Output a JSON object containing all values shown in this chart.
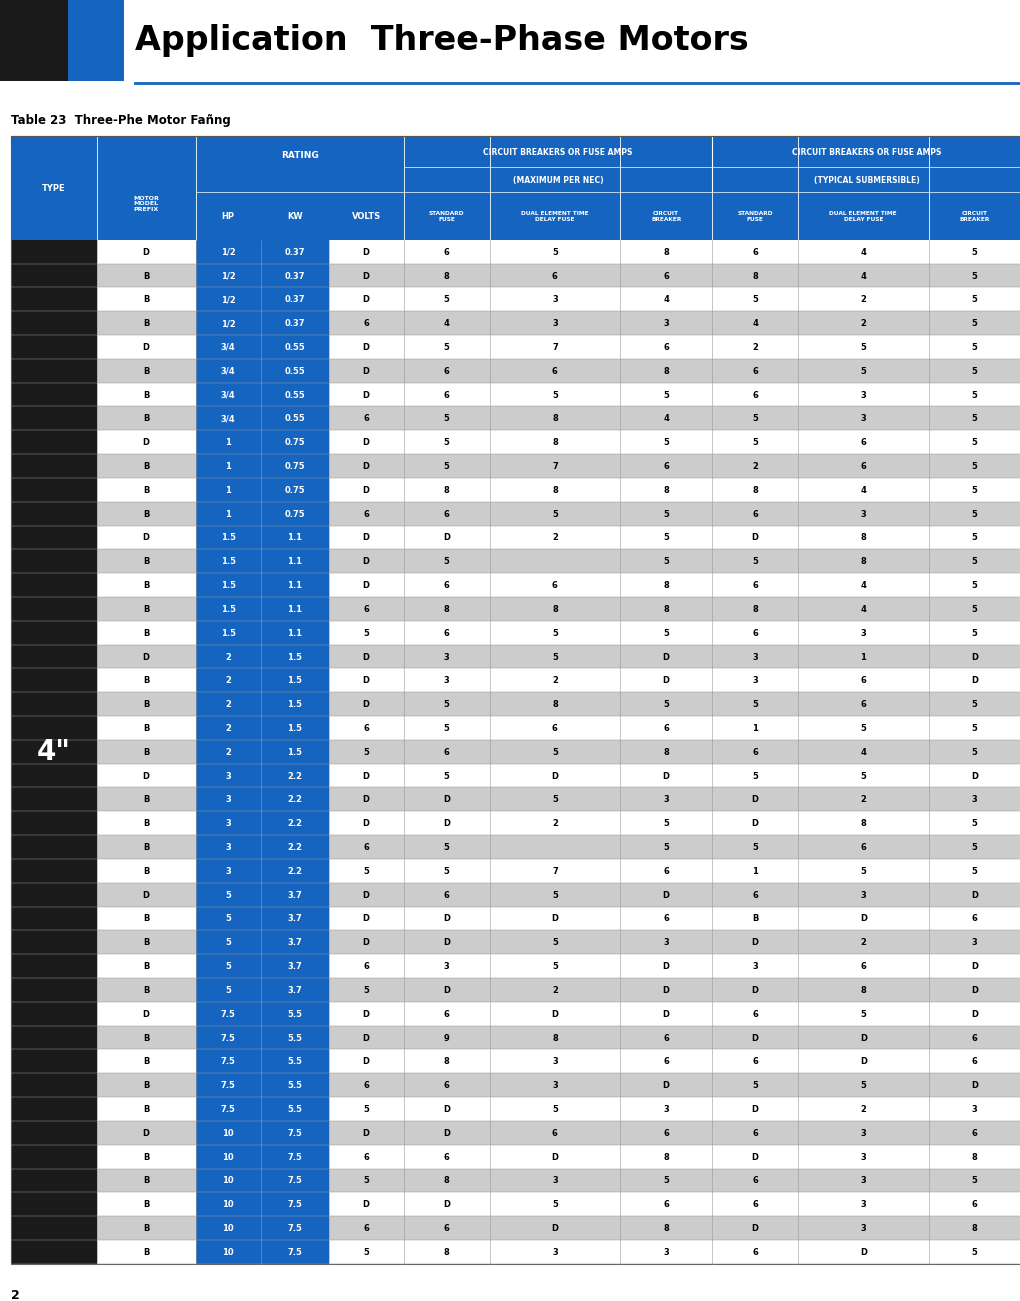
{
  "title": "Application  Three-Phase Motors",
  "subtitle": "Table 23 Three-Phe Motor Fañng",
  "page_num": "2",
  "blue": "#1565C0",
  "white": "#FFFFFF",
  "light_gray": "#CCCCCC",
  "dark": "#1A1A1A",
  "col_props": [
    0.082,
    0.095,
    0.062,
    0.065,
    0.072,
    0.082,
    0.125,
    0.088,
    0.082,
    0.125,
    0.088
  ],
  "rows": [
    [
      "D",
      "1/2",
      "0.37",
      "D",
      "6",
      "5",
      "8",
      "6",
      "4",
      "5",
      ""
    ],
    [
      "B",
      "1/2",
      "0.37",
      "D",
      "8",
      "6",
      "6",
      "8",
      "4",
      "5",
      ""
    ],
    [
      "B",
      "1/2",
      "0.37",
      "D",
      "5",
      "3",
      "4",
      "5",
      "2",
      "5",
      ""
    ],
    [
      "B",
      "1/2",
      "0.37",
      "6",
      "4",
      "3",
      "3",
      "4",
      "2",
      "5",
      ""
    ],
    [
      "D",
      "3/4",
      "0.55",
      "D",
      "5",
      "7",
      "6",
      "2",
      "5",
      "5",
      ""
    ],
    [
      "B",
      "3/4",
      "0.55",
      "D",
      "6",
      "6",
      "8",
      "6",
      "5",
      "5",
      ""
    ],
    [
      "B",
      "3/4",
      "0.55",
      "D",
      "6",
      "5",
      "5",
      "6",
      "3",
      "5",
      ""
    ],
    [
      "B",
      "3/4",
      "0.55",
      "6",
      "5",
      "8",
      "4",
      "5",
      "3",
      "5",
      ""
    ],
    [
      "D",
      "1",
      "0.75",
      "D",
      "5",
      "8",
      "5",
      "5",
      "6",
      "5",
      ""
    ],
    [
      "B",
      "1",
      "0.75",
      "D",
      "5",
      "7",
      "6",
      "2",
      "6",
      "5",
      ""
    ],
    [
      "B",
      "1",
      "0.75",
      "D",
      "8",
      "8",
      "8",
      "8",
      "4",
      "5",
      ""
    ],
    [
      "B",
      "1",
      "0.75",
      "6",
      "6",
      "5",
      "5",
      "6",
      "3",
      "5",
      ""
    ],
    [
      "D",
      "1.5",
      "1.1",
      "D",
      "D",
      "2",
      "5",
      "D",
      "8",
      "5",
      ""
    ],
    [
      "B",
      "1.5",
      "1.1",
      "D",
      "5",
      "",
      "5",
      "5",
      "8",
      "5",
      ""
    ],
    [
      "B",
      "1.5",
      "1.1",
      "D",
      "6",
      "6",
      "8",
      "6",
      "4",
      "5",
      ""
    ],
    [
      "B",
      "1.5",
      "1.1",
      "6",
      "8",
      "8",
      "8",
      "8",
      "4",
      "5",
      ""
    ],
    [
      "B",
      "1.5",
      "1.1",
      "5",
      "6",
      "5",
      "5",
      "6",
      "3",
      "5",
      ""
    ],
    [
      "D",
      "2",
      "1.5",
      "D",
      "3",
      "5",
      "D",
      "3",
      "1",
      "D",
      ""
    ],
    [
      "B",
      "2",
      "1.5",
      "D",
      "3",
      "2",
      "D",
      "3",
      "6",
      "D",
      ""
    ],
    [
      "B",
      "2",
      "1.5",
      "D",
      "5",
      "8",
      "5",
      "5",
      "6",
      "5",
      ""
    ],
    [
      "B",
      "2",
      "1.5",
      "6",
      "5",
      "6",
      "6",
      "1",
      "5",
      "5",
      ""
    ],
    [
      "B",
      "2",
      "1.5",
      "5",
      "6",
      "5",
      "8",
      "6",
      "4",
      "5",
      ""
    ],
    [
      "D",
      "3",
      "2.2",
      "D",
      "5",
      "D",
      "D",
      "5",
      "5",
      "D",
      ""
    ],
    [
      "B",
      "3",
      "2.2",
      "D",
      "D",
      "5",
      "3",
      "D",
      "2",
      "3",
      ""
    ],
    [
      "B",
      "3",
      "2.2",
      "D",
      "D",
      "2",
      "5",
      "D",
      "8",
      "5",
      ""
    ],
    [
      "B",
      "3",
      "2.2",
      "6",
      "5",
      "",
      "5",
      "5",
      "6",
      "5",
      ""
    ],
    [
      "B",
      "3",
      "2.2",
      "5",
      "5",
      "7",
      "6",
      "1",
      "5",
      "5",
      ""
    ],
    [
      "D",
      "5",
      "3.7",
      "D",
      "6",
      "5",
      "D",
      "6",
      "3",
      "D",
      ""
    ],
    [
      "B",
      "5",
      "3.7",
      "D",
      "D",
      "D",
      "6",
      "B",
      "D",
      "6",
      ""
    ],
    [
      "B",
      "5",
      "3.7",
      "D",
      "D",
      "5",
      "3",
      "D",
      "2",
      "3",
      ""
    ],
    [
      "B",
      "5",
      "3.7",
      "6",
      "3",
      "5",
      "D",
      "3",
      "6",
      "D",
      ""
    ],
    [
      "B",
      "5",
      "3.7",
      "5",
      "D",
      "2",
      "D",
      "D",
      "8",
      "D",
      ""
    ],
    [
      "D",
      "7.5",
      "5.5",
      "D",
      "6",
      "D",
      "D",
      "6",
      "5",
      "D",
      ""
    ],
    [
      "B",
      "7.5",
      "5.5",
      "D",
      "9",
      "8",
      "6",
      "D",
      "D",
      "6",
      ""
    ],
    [
      "B",
      "7.5",
      "5.5",
      "D",
      "8",
      "3",
      "6",
      "6",
      "D",
      "6",
      ""
    ],
    [
      "B",
      "7.5",
      "5.5",
      "6",
      "6",
      "3",
      "D",
      "5",
      "5",
      "D",
      ""
    ],
    [
      "B",
      "7.5",
      "5.5",
      "5",
      "D",
      "5",
      "3",
      "D",
      "2",
      "3",
      ""
    ],
    [
      "D",
      "10",
      "7.5",
      "D",
      "D",
      "6",
      "6",
      "6",
      "3",
      "6",
      ""
    ],
    [
      "B",
      "10",
      "7.5",
      "6",
      "6",
      "D",
      "8",
      "D",
      "3",
      "8",
      ""
    ],
    [
      "B",
      "10",
      "7.5",
      "5",
      "8",
      "3",
      "5",
      "6",
      "3",
      "5",
      ""
    ],
    [
      "B",
      "10",
      "7.5",
      "D",
      "D",
      "5",
      "6",
      "6",
      "3",
      "6",
      ""
    ],
    [
      "B",
      "10",
      "7.5",
      "6",
      "6",
      "D",
      "8",
      "D",
      "3",
      "8",
      ""
    ],
    [
      "B",
      "10",
      "7.5",
      "5",
      "8",
      "3",
      "3",
      "6",
      "D",
      "5",
      ""
    ]
  ]
}
